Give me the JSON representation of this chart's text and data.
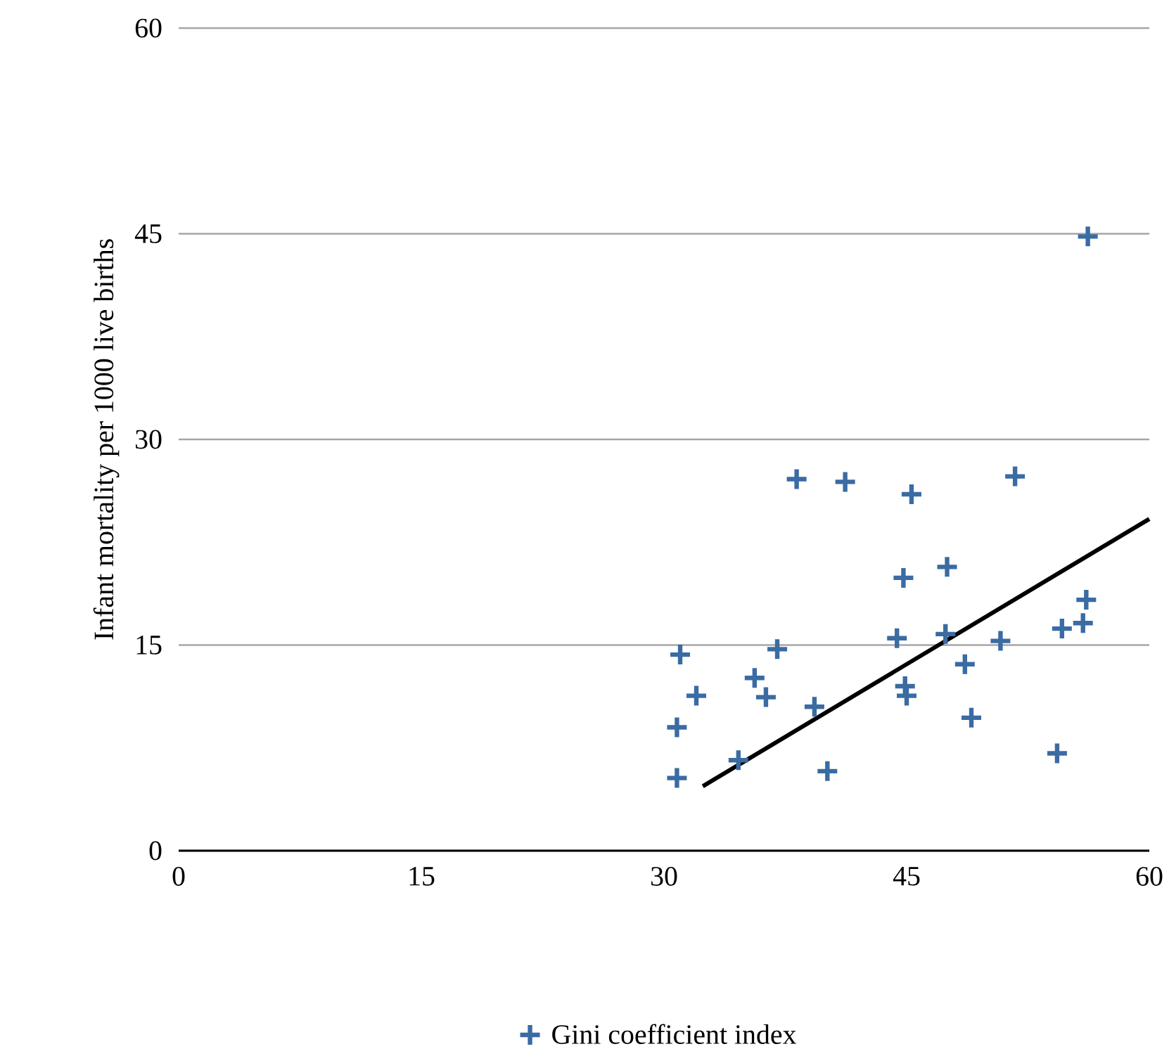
{
  "chart_data": {
    "type": "scatter",
    "ylabel": "Infant mortality per 1000 live births",
    "xlim": [
      0,
      60
    ],
    "xticks": [
      0,
      15,
      30,
      45,
      60
    ],
    "ylim": [
      0,
      60
    ],
    "yticks": [
      0,
      15,
      30,
      45,
      60
    ],
    "grid": "y",
    "legend": "bottom",
    "series": [
      {
        "name": "Gini coefficient index",
        "color": "#3a6ba3",
        "marker": "cross",
        "x": [
          31.0,
          32.0,
          30.8,
          30.8,
          34.6,
          35.6,
          36.3,
          37.0,
          39.3,
          40.1,
          38.2,
          41.2,
          45.3,
          51.7,
          44.8,
          47.5,
          44.4,
          47.4,
          48.6,
          44.9,
          45.0,
          50.8,
          49.0,
          54.3,
          54.6,
          55.9,
          56.1,
          56.2
        ],
        "values": [
          14.3,
          11.3,
          9.0,
          5.3,
          6.6,
          12.6,
          11.2,
          14.7,
          10.5,
          5.8,
          27.1,
          26.9,
          26.0,
          27.3,
          19.9,
          20.7,
          15.5,
          15.8,
          13.6,
          12.0,
          11.3,
          15.3,
          9.7,
          7.1,
          16.2,
          16.6,
          18.3,
          44.8
        ]
      },
      {
        "type": "line",
        "color": "#000000",
        "marker": "none",
        "x": [
          32.4,
          60
        ],
        "values": [
          4.7,
          24.2
        ]
      }
    ]
  }
}
